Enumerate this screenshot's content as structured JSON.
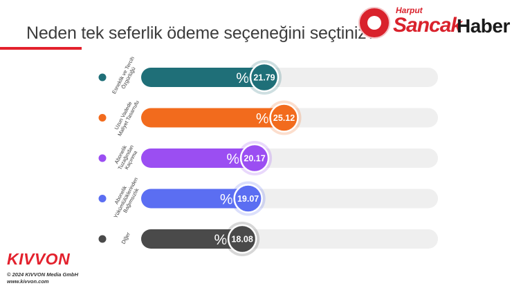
{
  "header": {
    "title": "Neden tek seferlik ödeme seçeneğini seçtiniz?"
  },
  "brand": {
    "kicker": "Harput",
    "word1": "Sancak",
    "word2": "Haber",
    "color": "#d9222c"
  },
  "footer": {
    "logo": "KIVVON",
    "copyright": "© 2024 KIVVON Media GmbH",
    "url": "www.kivvon.com"
  },
  "chart_data": {
    "type": "bar",
    "orientation": "horizontal",
    "title": "Neden tek seferlik ödeme seçeneğini seçtiniz?",
    "prefix": "%",
    "xlim": [
      0,
      50
    ],
    "grid": false,
    "legend": "none",
    "categories": [
      "Esneklik ve Tercih Özgürlüğü",
      "Uzun Vadede Maliyet Tasarrufu",
      "Abonelik Tuzağından Kaçınma",
      "Abonelik Yükümlülüklerinden Bağımsızlık",
      "Diğer"
    ],
    "values": [
      21.79,
      25.12,
      20.17,
      19.07,
      18.08
    ],
    "colors": [
      "#1f6f78",
      "#f26b1d",
      "#9b4ef2",
      "#5b6ef2",
      "#4a4a4a"
    ],
    "track_color": "#efefef"
  }
}
